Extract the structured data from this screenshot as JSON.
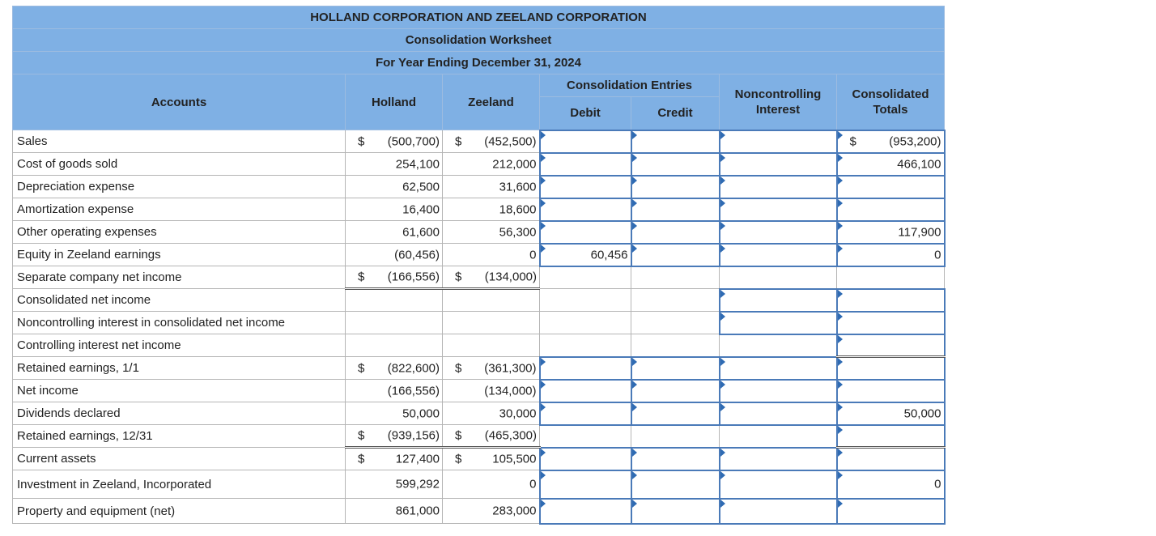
{
  "title": {
    "line1": "HOLLAND CORPORATION AND ZEELAND CORPORATION",
    "line2": "Consolidation Worksheet",
    "line3": "For Year Ending December 31, 2024"
  },
  "headers": {
    "accounts": "Accounts",
    "holland": "Holland",
    "zeeland": "Zeeland",
    "entries": "Consolidation Entries",
    "debit": "Debit",
    "credit": "Credit",
    "nci": "Noncontrolling Interest",
    "totals": "Consolidated Totals"
  },
  "rows": [
    {
      "account": "Sales",
      "holland_dollar": "$",
      "holland": "(500,700)",
      "zeeland_dollar": "$",
      "zeeland": "(452,500)",
      "debit": "",
      "credit": "",
      "nci": "",
      "total_dollar": "$",
      "total": "(953,200)"
    },
    {
      "account": "Cost of goods sold",
      "holland": "254,100",
      "zeeland": "212,000",
      "debit": "",
      "credit": "",
      "nci": "",
      "total": "466,100"
    },
    {
      "account": "Depreciation expense",
      "holland": "62,500",
      "zeeland": "31,600",
      "debit": "",
      "credit": "",
      "nci": "",
      "total": ""
    },
    {
      "account": "Amortization expense",
      "holland": "16,400",
      "zeeland": "18,600",
      "debit": "",
      "credit": "",
      "nci": "",
      "total": ""
    },
    {
      "account": "Other operating expenses",
      "holland": "61,600",
      "zeeland": "56,300",
      "debit": "",
      "credit": "",
      "nci": "",
      "total": "117,900"
    },
    {
      "account": "Equity in Zeeland earnings",
      "holland": "(60,456)",
      "zeeland": "0",
      "debit": "60,456",
      "credit": "",
      "nci": "",
      "total": "0"
    },
    {
      "account": "Separate company net income",
      "holland_dollar": "$",
      "holland": "(166,556)",
      "zeeland_dollar": "$",
      "zeeland": "(134,000)"
    },
    {
      "account": "Consolidated net income",
      "nci": "",
      "total": ""
    },
    {
      "account": "Noncontrolling interest in consolidated net income",
      "nci": "",
      "total": ""
    },
    {
      "account": "Controlling interest net income",
      "total": ""
    },
    {
      "account": "Retained earnings, 1/1",
      "holland_dollar": "$",
      "holland": "(822,600)",
      "zeeland_dollar": "$",
      "zeeland": "(361,300)",
      "debit": "",
      "credit": "",
      "nci": "",
      "total": ""
    },
    {
      "account": "Net income",
      "holland": "(166,556)",
      "zeeland": "(134,000)",
      "debit": "",
      "credit": "",
      "nci": "",
      "total": ""
    },
    {
      "account": "Dividends declared",
      "holland": "50,000",
      "zeeland": "30,000",
      "debit": "",
      "credit": "",
      "nci": "",
      "total": "50,000"
    },
    {
      "account": "Retained earnings, 12/31",
      "holland_dollar": "$",
      "holland": "(939,156)",
      "zeeland_dollar": "$",
      "zeeland": "(465,300)",
      "total": ""
    },
    {
      "account": "Current assets",
      "holland_dollar": "$",
      "holland": "127,400",
      "zeeland_dollar": "$",
      "zeeland": "105,500",
      "debit": "",
      "credit": "",
      "nci": "",
      "total": ""
    },
    {
      "account": "Investment in Zeeland, Incorporated",
      "holland": "599,292",
      "zeeland": "0",
      "debit": "",
      "credit": "",
      "nci": "",
      "total": "0"
    },
    {
      "account": "Property and equipment (net)",
      "holland": "861,000",
      "zeeland": "283,000",
      "debit": "",
      "credit": "",
      "nci": "",
      "total": ""
    }
  ]
}
